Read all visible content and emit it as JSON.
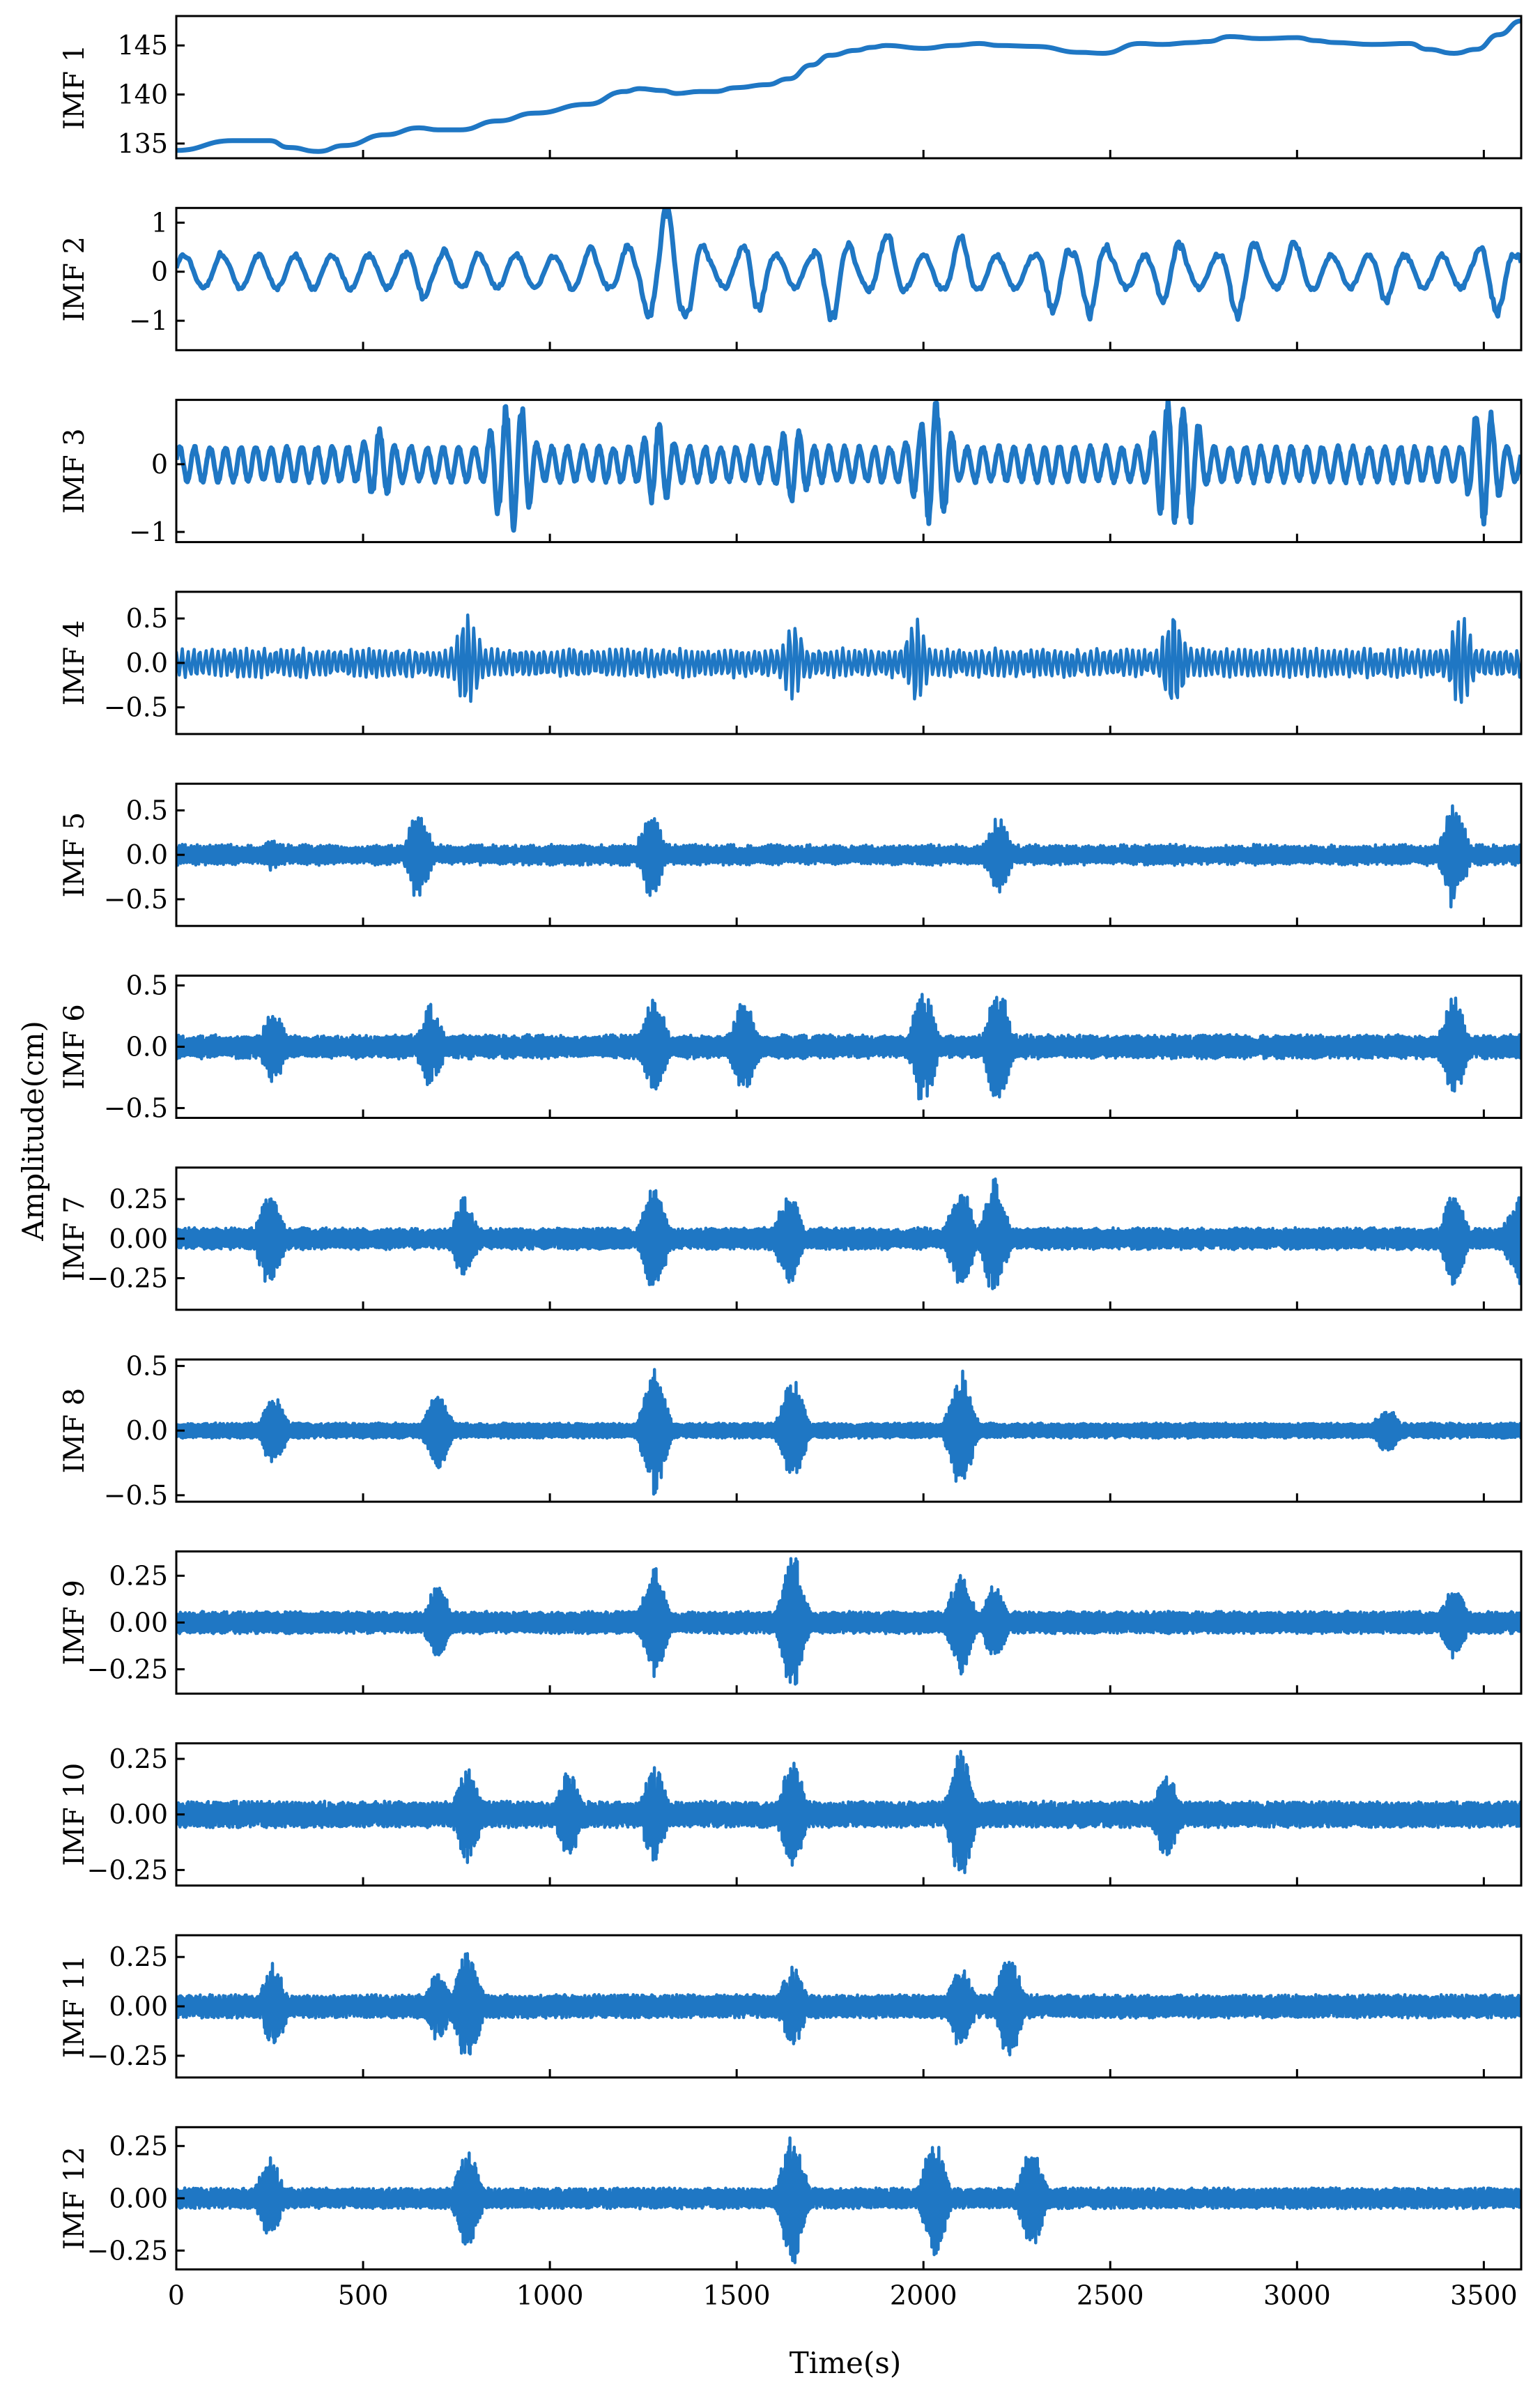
{
  "chart_data": {
    "type": "line",
    "series_color": "#1f77c4",
    "ylabel": "Amplitude(cm)",
    "xlabel": "Time(s)",
    "xlim": [
      0,
      3600
    ],
    "xticks": [
      "0",
      "500",
      "1000",
      "1500",
      "2000",
      "2500",
      "3000",
      "3500"
    ],
    "xtick_values": [
      0,
      500,
      1000,
      1500,
      2000,
      2500,
      3000,
      3500
    ],
    "panels": [
      {
        "label": "IMF 1",
        "kind": "trend",
        "ylim": [
          133.5,
          148
        ],
        "yticks": [
          135,
          140,
          145
        ],
        "ytick_labels": [
          "135",
          "140",
          "145"
        ],
        "trend": {
          "x": [
            0,
            150,
            250,
            300,
            380,
            450,
            560,
            650,
            700,
            760,
            860,
            960,
            1100,
            1200,
            1240,
            1300,
            1340,
            1400,
            1440,
            1500,
            1580,
            1640,
            1700,
            1750,
            1820,
            1860,
            1900,
            2000,
            2080,
            2150,
            2200,
            2300,
            2420,
            2480,
            2580,
            2640,
            2720,
            2760,
            2820,
            2900,
            3000,
            3050,
            3100,
            3200,
            3300,
            3350,
            3420,
            3480,
            3540,
            3600
          ],
          "y": [
            134.3,
            135.3,
            135.3,
            134.6,
            134.2,
            134.8,
            135.9,
            136.6,
            136.4,
            136.4,
            137.3,
            138.1,
            139,
            140.3,
            140.6,
            140.4,
            140.1,
            140.3,
            140.3,
            140.7,
            141,
            141.6,
            143,
            144,
            144.5,
            144.8,
            145,
            144.7,
            145,
            145.2,
            145,
            144.9,
            144.3,
            144.2,
            145.2,
            145.1,
            145.3,
            145.4,
            145.9,
            145.7,
            145.8,
            145.5,
            145.3,
            145.1,
            145.2,
            144.6,
            144.2,
            144.6,
            146.1,
            147.5
          ]
        }
      },
      {
        "label": "IMF 2",
        "kind": "osc",
        "ylim": [
          -1.6,
          1.3
        ],
        "yticks": [
          -1,
          0,
          1
        ],
        "ytick_labels": [
          "−1",
          "0",
          "1"
        ],
        "period": 100,
        "base": 0.38,
        "peaks": [
          [
            110,
            0.45
          ],
          [
            250,
            0.35
          ],
          [
            490,
            0.3
          ],
          [
            650,
            0.6
          ],
          [
            730,
            0.5
          ],
          [
            800,
            0.45
          ],
          [
            1100,
            0.55
          ],
          [
            1200,
            0.6
          ],
          [
            1280,
            1.1
          ],
          [
            1320,
            1.5
          ],
          [
            1370,
            1.1
          ],
          [
            1550,
            0.9
          ],
          [
            1760,
            1.1
          ],
          [
            1900,
            0.9
          ],
          [
            2100,
            0.8
          ],
          [
            2350,
            0.9
          ],
          [
            2450,
            1.0
          ],
          [
            2660,
            0.8
          ],
          [
            2850,
            1.1
          ],
          [
            3000,
            0.7
          ],
          [
            3240,
            0.7
          ],
          [
            3530,
            1.0
          ]
        ]
      },
      {
        "label": "IMF 3",
        "kind": "osc",
        "ylim": [
          -1.15,
          0.95
        ],
        "yticks": [
          -1,
          0
        ],
        "ytick_labels": [
          "−1",
          "0"
        ],
        "period": 42,
        "base": 0.28,
        "peaks": [
          [
            20,
            0.05
          ],
          [
            540,
            0.55
          ],
          [
            880,
            0.9
          ],
          [
            910,
            1.0
          ],
          [
            1290,
            0.65
          ],
          [
            1650,
            0.6
          ],
          [
            1990,
            0.55
          ],
          [
            2030,
            1.0
          ],
          [
            2660,
            1.0
          ],
          [
            2700,
            0.95
          ],
          [
            3500,
            0.9
          ]
        ]
      },
      {
        "label": "IMF 4",
        "kind": "burst",
        "ylim": [
          -0.8,
          0.8
        ],
        "yticks": [
          -0.5,
          0,
          0.5
        ],
        "ytick_labels": [
          "−0.5",
          "0.0",
          "0.5"
        ],
        "period": 16,
        "base": 0.17,
        "peaks": [
          [
            30,
            0.0
          ],
          [
            780,
            0.65
          ],
          [
            1650,
            0.5
          ],
          [
            1980,
            0.55
          ],
          [
            2670,
            0.65
          ],
          [
            3440,
            0.6
          ]
        ]
      },
      {
        "label": "IMF 5",
        "kind": "burst",
        "ylim": [
          -0.8,
          0.8
        ],
        "yticks": [
          -0.5,
          0,
          0.5
        ],
        "ytick_labels": [
          "−0.5",
          "0.0",
          "0.5"
        ],
        "period": 8,
        "base": 0.12,
        "peaks": [
          [
            250,
            0.2
          ],
          [
            650,
            0.55
          ],
          [
            1270,
            0.5
          ],
          [
            2200,
            0.45
          ],
          [
            3420,
            0.7
          ]
        ]
      },
      {
        "label": "IMF 6",
        "kind": "burst",
        "ylim": [
          -0.58,
          0.58
        ],
        "yticks": [
          -0.5,
          0,
          0.5
        ],
        "ytick_labels": [
          "−0.5",
          "0.0",
          "0.5"
        ],
        "period": 6,
        "base": 0.1,
        "peaks": [
          [
            260,
            0.3
          ],
          [
            680,
            0.35
          ],
          [
            1280,
            0.42
          ],
          [
            1520,
            0.45
          ],
          [
            2000,
            0.5
          ],
          [
            2200,
            0.5
          ],
          [
            3420,
            0.45
          ]
        ]
      },
      {
        "label": "IMF 7",
        "kind": "burst",
        "ylim": [
          -0.45,
          0.45
        ],
        "yticks": [
          -0.25,
          0,
          0.25
        ],
        "ytick_labels": [
          "−0.25",
          "0.00",
          "0.25"
        ],
        "period": 5,
        "base": 0.07,
        "peaks": [
          [
            250,
            0.33
          ],
          [
            770,
            0.28
          ],
          [
            1280,
            0.36
          ],
          [
            1640,
            0.3
          ],
          [
            2100,
            0.35
          ],
          [
            2190,
            0.4
          ],
          [
            3420,
            0.3
          ],
          [
            3590,
            0.3
          ]
        ]
      },
      {
        "label": "IMF 8",
        "kind": "burst",
        "ylim": [
          -0.55,
          0.55
        ],
        "yticks": [
          -0.5,
          0,
          0.5
        ],
        "ytick_labels": [
          "−0.5",
          "0.0",
          "0.5"
        ],
        "period": 4,
        "base": 0.06,
        "peaks": [
          [
            260,
            0.28
          ],
          [
            700,
            0.3
          ],
          [
            1280,
            0.5
          ],
          [
            1650,
            0.45
          ],
          [
            2100,
            0.48
          ],
          [
            3240,
            0.2
          ]
        ]
      },
      {
        "label": "IMF 9",
        "kind": "burst",
        "ylim": [
          -0.38,
          0.38
        ],
        "yticks": [
          -0.25,
          0,
          0.25
        ],
        "ytick_labels": [
          "−0.25",
          "0.00",
          "0.25"
        ],
        "period": 3.5,
        "base": 0.06,
        "peaks": [
          [
            700,
            0.2
          ],
          [
            1280,
            0.3
          ],
          [
            1650,
            0.38
          ],
          [
            2100,
            0.28
          ],
          [
            2190,
            0.2
          ],
          [
            3420,
            0.2
          ]
        ]
      },
      {
        "label": "IMF 10",
        "kind": "burst",
        "ylim": [
          -0.32,
          0.32
        ],
        "yticks": [
          -0.25,
          0,
          0.25
        ],
        "ytick_labels": [
          "−0.25",
          "0.00",
          "0.25"
        ],
        "period": 3,
        "base": 0.06,
        "peaks": [
          [
            780,
            0.22
          ],
          [
            1050,
            0.2
          ],
          [
            1280,
            0.22
          ],
          [
            1650,
            0.25
          ],
          [
            2100,
            0.3
          ],
          [
            2650,
            0.2
          ]
        ]
      },
      {
        "label": "IMF 11",
        "kind": "burst",
        "ylim": [
          -0.36,
          0.36
        ],
        "yticks": [
          -0.25,
          0,
          0.25
        ],
        "ytick_labels": [
          "−0.25",
          "0.00",
          "0.25"
        ],
        "period": 3,
        "base": 0.06,
        "peaks": [
          [
            260,
            0.22
          ],
          [
            700,
            0.18
          ],
          [
            780,
            0.32
          ],
          [
            1650,
            0.22
          ],
          [
            2100,
            0.22
          ],
          [
            2230,
            0.28
          ]
        ]
      },
      {
        "label": "IMF 12",
        "kind": "burst",
        "ylim": [
          -0.34,
          0.34
        ],
        "yticks": [
          -0.25,
          0,
          0.25
        ],
        "ytick_labels": [
          "−0.25",
          "0.00",
          "0.25"
        ],
        "period": 3,
        "base": 0.05,
        "peaks": [
          [
            250,
            0.2
          ],
          [
            780,
            0.25
          ],
          [
            1650,
            0.32
          ],
          [
            2030,
            0.3
          ],
          [
            2290,
            0.25
          ]
        ]
      }
    ]
  }
}
